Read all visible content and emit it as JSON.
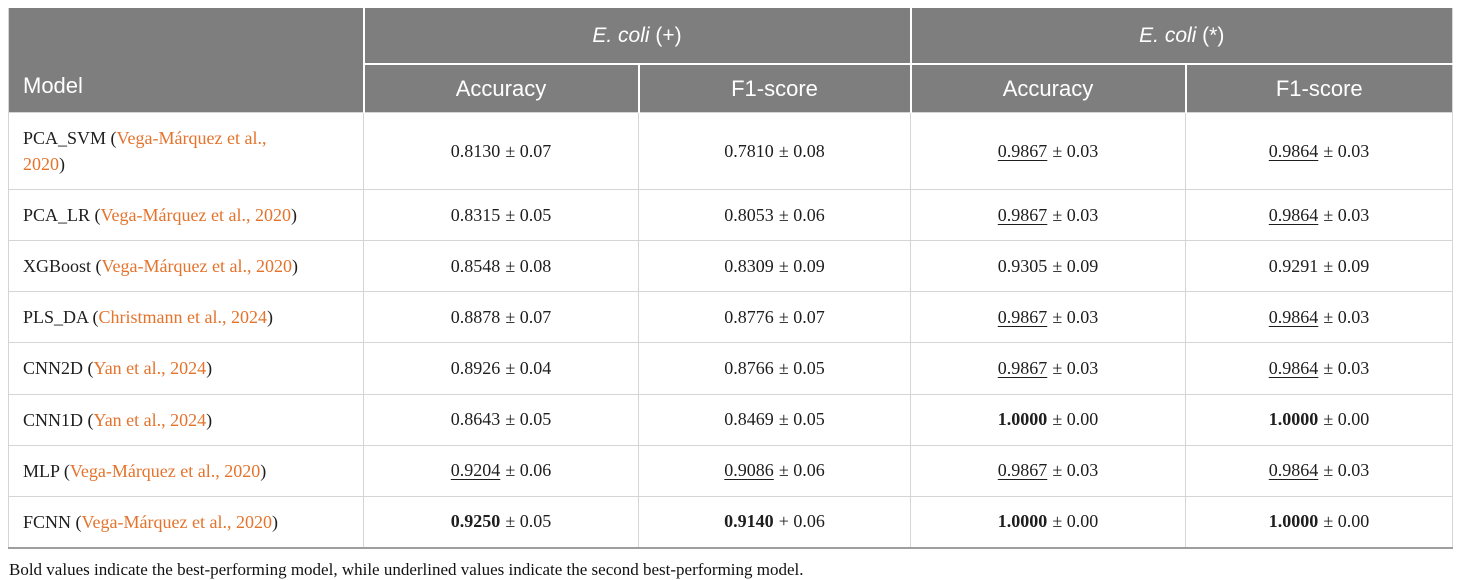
{
  "colors": {
    "header_bg": "#7e7e7e",
    "header_text": "#ffffff",
    "body_text": "#1e1e1e",
    "citation_orange": "#e4732c",
    "row_border": "#d5d5d5",
    "table_bottom_border": "#9e9e9e"
  },
  "header": {
    "model_label": "Model",
    "groups": [
      {
        "label_italic": "E. coli",
        "label_suffix": " (+)"
      },
      {
        "label_italic": "E. coli",
        "label_suffix": " (*)"
      }
    ],
    "subheaders": [
      "Accuracy",
      "F1-score",
      "Accuracy",
      "F1-score"
    ]
  },
  "rows": [
    {
      "model_parts": [
        {
          "text": "PCA_SVM (",
          "type": "plain"
        },
        {
          "text": "Vega-Márquez et al., 2020",
          "type": "citation"
        },
        {
          "text": ")",
          "type": "plain"
        }
      ],
      "cells": [
        {
          "value": "0.8130",
          "sep": "±",
          "err": "0.07",
          "style": "normal"
        },
        {
          "value": "0.7810",
          "sep": "±",
          "err": "0.08",
          "style": "normal"
        },
        {
          "value": "0.9867",
          "sep": "±",
          "err": "0.03",
          "style": "underline"
        },
        {
          "value": "0.9864",
          "sep": "±",
          "err": "0.03",
          "style": "underline"
        }
      ]
    },
    {
      "model_parts": [
        {
          "text": "PCA_LR (",
          "type": "plain"
        },
        {
          "text": "Vega-Márquez et al., 2020",
          "type": "citation"
        },
        {
          "text": ")",
          "type": "plain"
        }
      ],
      "cells": [
        {
          "value": "0.8315",
          "sep": "±",
          "err": "0.05",
          "style": "normal"
        },
        {
          "value": "0.8053",
          "sep": "±",
          "err": "0.06",
          "style": "normal"
        },
        {
          "value": "0.9867",
          "sep": "±",
          "err": "0.03",
          "style": "underline"
        },
        {
          "value": "0.9864",
          "sep": "±",
          "err": "0.03",
          "style": "underline"
        }
      ]
    },
    {
      "model_parts": [
        {
          "text": "XGBoost (",
          "type": "plain"
        },
        {
          "text": "Vega-Márquez et al., 2020",
          "type": "citation"
        },
        {
          "text": ")",
          "type": "plain"
        }
      ],
      "cells": [
        {
          "value": "0.8548",
          "sep": "±",
          "err": "0.08",
          "style": "normal"
        },
        {
          "value": "0.8309",
          "sep": "±",
          "err": "0.09",
          "style": "normal"
        },
        {
          "value": "0.9305",
          "sep": "±",
          "err": "0.09",
          "style": "normal"
        },
        {
          "value": "0.9291",
          "sep": "±",
          "err": "0.09",
          "style": "normal"
        }
      ]
    },
    {
      "model_parts": [
        {
          "text": "PLS_DA (",
          "type": "plain"
        },
        {
          "text": "Christmann et al., 2024",
          "type": "citation"
        },
        {
          "text": ")",
          "type": "plain"
        }
      ],
      "cells": [
        {
          "value": "0.8878",
          "sep": "±",
          "err": "0.07",
          "style": "normal"
        },
        {
          "value": "0.8776",
          "sep": "±",
          "err": "0.07",
          "style": "normal"
        },
        {
          "value": "0.9867",
          "sep": "±",
          "err": "0.03",
          "style": "underline"
        },
        {
          "value": "0.9864",
          "sep": "±",
          "err": "0.03",
          "style": "underline"
        }
      ]
    },
    {
      "model_parts": [
        {
          "text": "CNN2D (",
          "type": "plain"
        },
        {
          "text": "Yan et al., 2024",
          "type": "citation"
        },
        {
          "text": ")",
          "type": "plain"
        }
      ],
      "cells": [
        {
          "value": "0.8926",
          "sep": "±",
          "err": "0.04",
          "style": "normal"
        },
        {
          "value": "0.8766",
          "sep": "±",
          "err": "0.05",
          "style": "normal"
        },
        {
          "value": "0.9867",
          "sep": "±",
          "err": "0.03",
          "style": "underline"
        },
        {
          "value": "0.9864",
          "sep": "±",
          "err": "0.03",
          "style": "underline"
        }
      ]
    },
    {
      "model_parts": [
        {
          "text": "CNN1D (",
          "type": "plain"
        },
        {
          "text": "Yan et al., 2024",
          "type": "citation"
        },
        {
          "text": ")",
          "type": "plain"
        }
      ],
      "cells": [
        {
          "value": "0.8643",
          "sep": "±",
          "err": "0.05",
          "style": "normal"
        },
        {
          "value": "0.8469",
          "sep": "±",
          "err": "0.05",
          "style": "normal"
        },
        {
          "value": "1.0000",
          "sep": "±",
          "err": "0.00",
          "style": "bold"
        },
        {
          "value": "1.0000",
          "sep": "±",
          "err": "0.00",
          "style": "bold"
        }
      ]
    },
    {
      "model_parts": [
        {
          "text": "MLP (",
          "type": "plain"
        },
        {
          "text": "Vega-Márquez et al., 2020",
          "type": "citation"
        },
        {
          "text": ")",
          "type": "plain"
        }
      ],
      "cells": [
        {
          "value": "0.9204",
          "sep": "±",
          "err": "0.06",
          "style": "underline"
        },
        {
          "value": "0.9086",
          "sep": "±",
          "err": "0.06",
          "style": "underline"
        },
        {
          "value": "0.9867",
          "sep": "±",
          "err": "0.03",
          "style": "underline"
        },
        {
          "value": "0.9864",
          "sep": "±",
          "err": "0.03",
          "style": "underline"
        }
      ]
    },
    {
      "model_parts": [
        {
          "text": "FCNN (",
          "type": "plain"
        },
        {
          "text": "Vega-Márquez et al., 2020",
          "type": "citation"
        },
        {
          "text": ")",
          "type": "plain"
        }
      ],
      "cells": [
        {
          "value": "0.9250",
          "sep": "±",
          "err": "0.05",
          "style": "bold"
        },
        {
          "value": "0.9140",
          "sep": "+",
          "err": "0.06",
          "style": "bold"
        },
        {
          "value": "1.0000",
          "sep": "±",
          "err": "0.00",
          "style": "bold"
        },
        {
          "value": "1.0000",
          "sep": "±",
          "err": "0.00",
          "style": "bold"
        }
      ]
    }
  ],
  "footnote": "Bold values indicate the best-performing model, while underlined values indicate the second best-performing model."
}
